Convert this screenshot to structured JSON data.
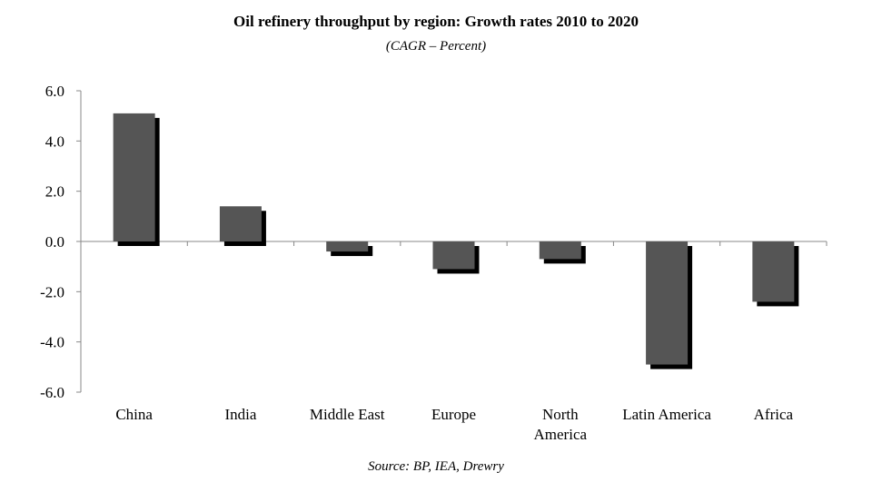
{
  "chart_data": {
    "type": "bar",
    "title": "Oil refinery throughput by region: Growth rates 2010 to 2020",
    "subtitle": "(CAGR – Percent)",
    "source": "Source: BP, IEA, Drewry",
    "xlabel": "",
    "ylabel": "",
    "ylim": [
      -6.0,
      6.0
    ],
    "yticks": [
      6.0,
      4.0,
      2.0,
      0.0,
      -2.0,
      -4.0,
      -6.0
    ],
    "ytick_labels": [
      "6.0",
      "4.0",
      "2.0",
      "0.0",
      "-2.0",
      "-4.0",
      "-6.0"
    ],
    "categories": [
      "China",
      "India",
      "Middle East",
      "Europe",
      "North America",
      "Latin America",
      "Africa"
    ],
    "category_lines": [
      [
        "China"
      ],
      [
        "India"
      ],
      [
        "Middle East"
      ],
      [
        "Europe"
      ],
      [
        "North",
        "America"
      ],
      [
        "Latin America"
      ],
      [
        "Africa"
      ]
    ],
    "values": [
      5.1,
      1.4,
      -0.4,
      -1.1,
      -0.7,
      -4.9,
      -2.4
    ],
    "grid": false,
    "colors": {
      "bar": "#555555",
      "shadow": "#000000",
      "axis": "#888888"
    }
  }
}
